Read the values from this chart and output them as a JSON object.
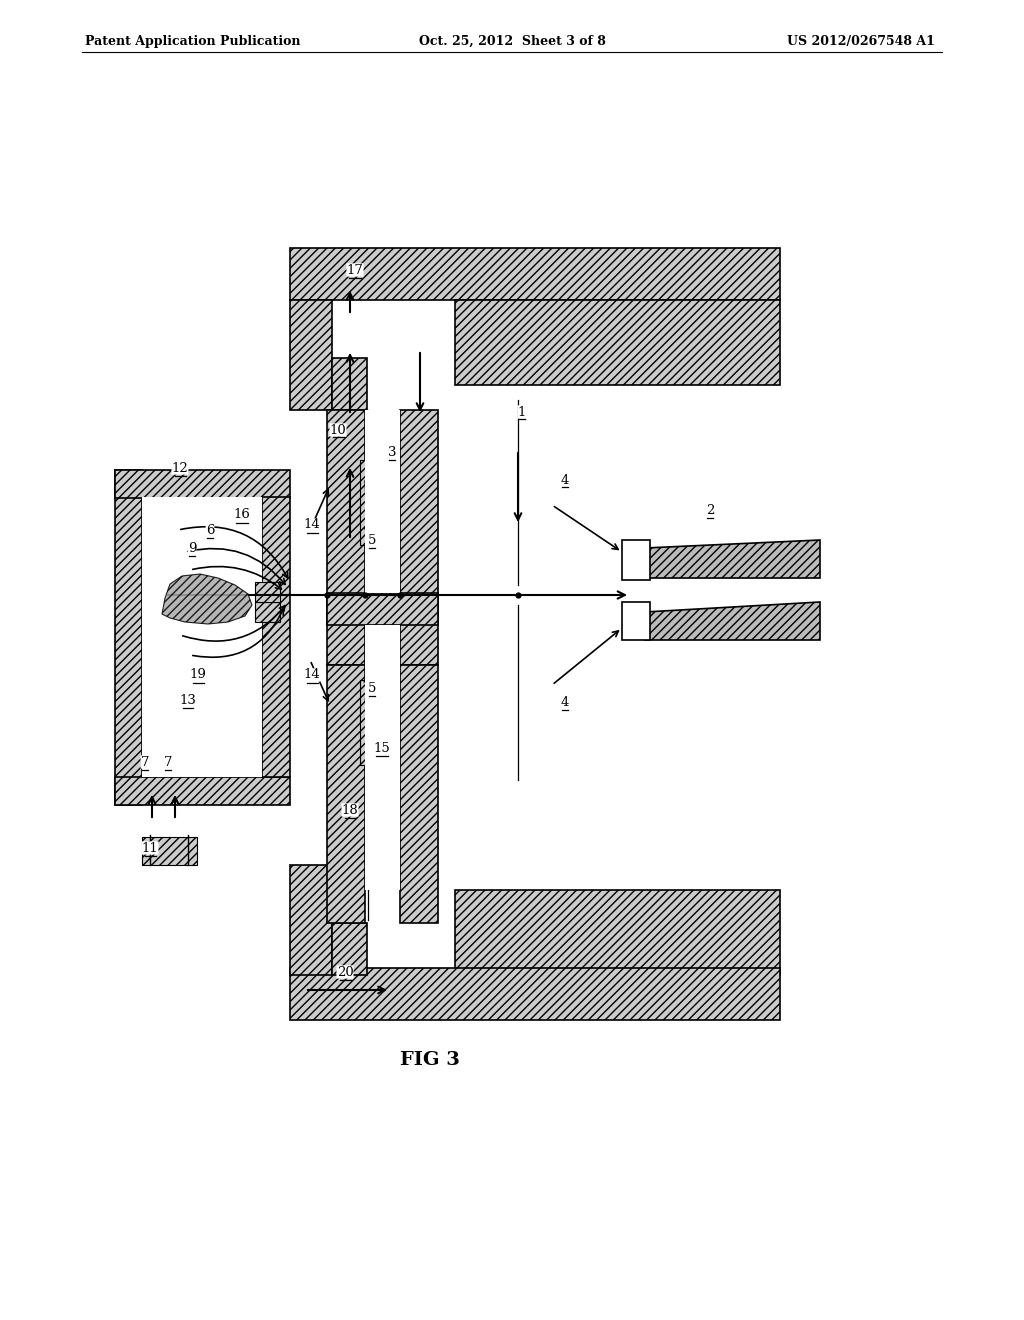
{
  "title_left": "Patent Application Publication",
  "title_center": "Oct. 25, 2012  Sheet 3 of 8",
  "title_right": "US 2012/0267548 A1",
  "fig_label": "FIG 3",
  "background": "#ffffff",
  "line_color": "#000000"
}
